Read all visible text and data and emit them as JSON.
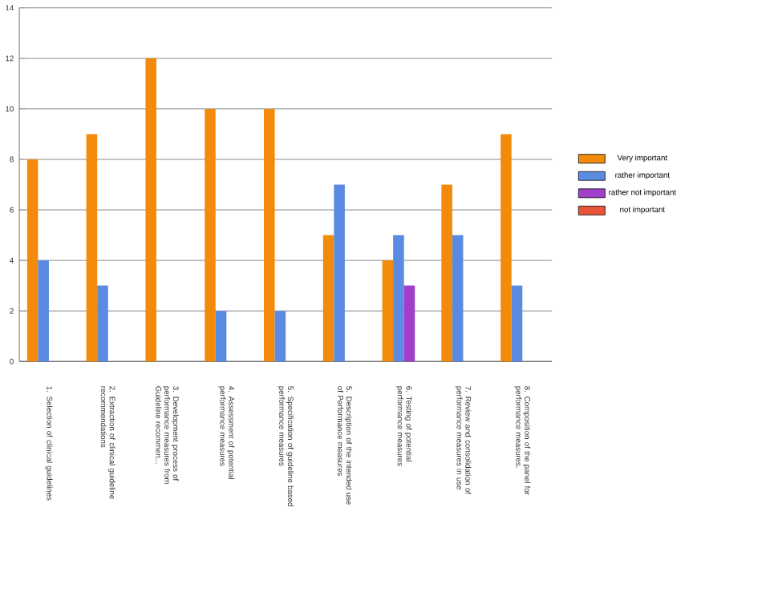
{
  "chart_data": {
    "type": "bar",
    "categories": [
      "1. Selection of clinical guidelines",
      "2. Extraction of clinical guideline recommendations",
      "3. Development process of performance measures from Guideline recommen...",
      "4. Assessment of potential performance measures",
      "5. Specification of guideline based performance measures",
      "5. Description of the intended use of Performance measures",
      "6. Testing of potential performance measures",
      "7. Review and consolidation of performance measures in use",
      "8. Composition of the panel for performance measures."
    ],
    "series": [
      {
        "name": "Very important",
        "color": "#f28a0c",
        "values": [
          8,
          9,
          12,
          10,
          10,
          5,
          4,
          7,
          9
        ]
      },
      {
        "name": "rather important",
        "color": "#5b8be0",
        "values": [
          4,
          3,
          0,
          2,
          2,
          7,
          5,
          5,
          3
        ]
      },
      {
        "name": "rather not important",
        "color": "#a040c8",
        "values": [
          0,
          0,
          0,
          0,
          0,
          0,
          3,
          0,
          0
        ]
      },
      {
        "name": "not important",
        "color": "#e8533a",
        "values": [
          0,
          0,
          0,
          0,
          0,
          0,
          0,
          0,
          0
        ]
      }
    ],
    "ylim": [
      0,
      14
    ],
    "yticks": [
      0,
      2,
      4,
      6,
      8,
      10,
      12,
      14
    ],
    "grid": "y",
    "legend": "right"
  }
}
